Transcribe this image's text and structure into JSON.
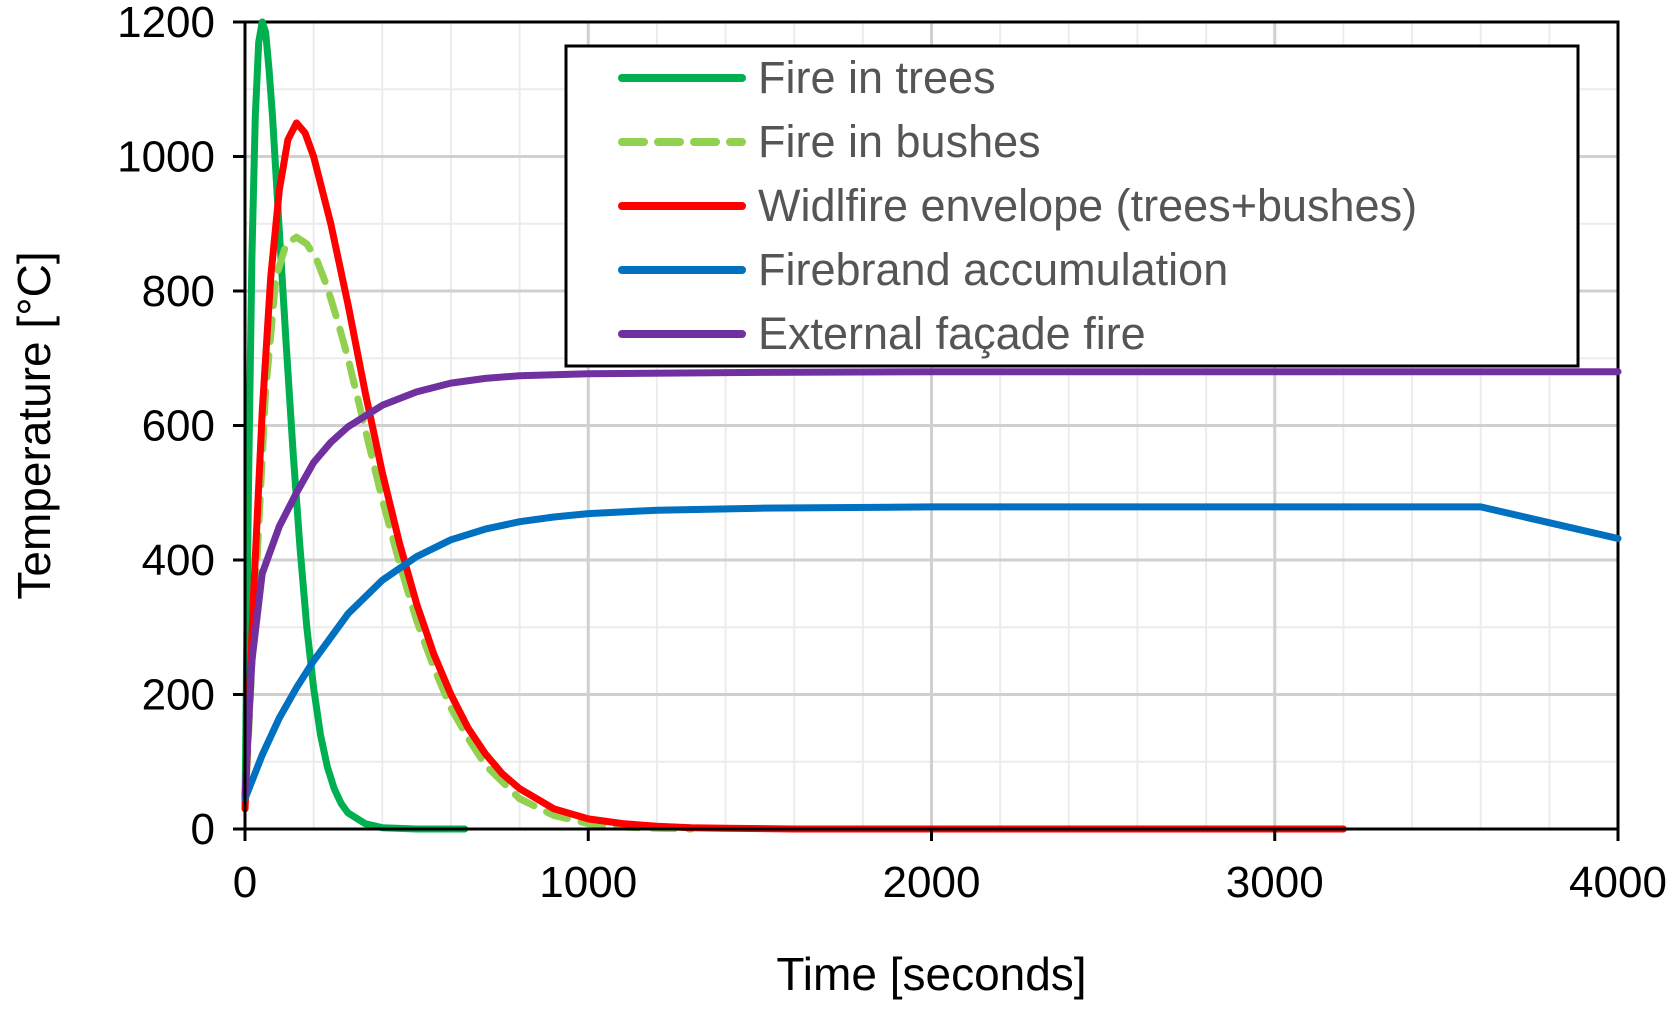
{
  "chart_data": {
    "type": "line",
    "title": "",
    "xlabel": "Time [seconds]",
    "ylabel": "Temperature [°C]",
    "xlim": [
      0,
      4000
    ],
    "ylim": [
      0,
      1200
    ],
    "xticks": [
      0,
      1000,
      2000,
      3000,
      4000
    ],
    "yticks": [
      0,
      200,
      400,
      600,
      800,
      1000,
      1200
    ],
    "x_tick_labels": [
      "0",
      "1000",
      "2000",
      "3000",
      "4000"
    ],
    "y_tick_labels": [
      "0",
      "200",
      "400",
      "600",
      "800",
      "1000",
      "1200"
    ],
    "grid": true,
    "legend_position": "top-right",
    "series": [
      {
        "name": "Fire in trees",
        "color": "#00b050",
        "dash": "solid",
        "x": [
          0,
          10,
          20,
          30,
          40,
          50,
          60,
          70,
          80,
          90,
          100,
          120,
          140,
          160,
          180,
          200,
          220,
          240,
          260,
          280,
          300,
          350,
          400,
          500,
          640
        ],
        "y": [
          30,
          500,
          850,
          1060,
          1170,
          1200,
          1185,
          1130,
          1060,
          975,
          890,
          720,
          560,
          420,
          300,
          210,
          140,
          92,
          60,
          38,
          24,
          8,
          2,
          0,
          0
        ]
      },
      {
        "name": "Fire in bushes",
        "color": "#92d050",
        "dash": "dashed",
        "x": [
          0,
          30,
          60,
          90,
          120,
          150,
          180,
          210,
          240,
          270,
          300,
          350,
          400,
          450,
          500,
          550,
          600,
          650,
          700,
          800,
          900,
          1000,
          1100,
          1200,
          1300
        ],
        "y": [
          30,
          350,
          650,
          820,
          870,
          880,
          870,
          845,
          805,
          755,
          700,
          595,
          490,
          395,
          310,
          240,
          180,
          135,
          95,
          45,
          20,
          8,
          3,
          1,
          0
        ]
      },
      {
        "name": "Widlfire envelope (trees+bushes)",
        "color": "#ff0000",
        "dash": "solid",
        "x": [
          0,
          25,
          50,
          75,
          100,
          125,
          150,
          175,
          200,
          250,
          300,
          350,
          400,
          450,
          500,
          550,
          600,
          650,
          700,
          750,
          800,
          900,
          1000,
          1100,
          1200,
          1300,
          1400,
          1600,
          2000,
          3000,
          3200
        ],
        "y": [
          30,
          350,
          620,
          820,
          950,
          1025,
          1050,
          1035,
          1000,
          900,
          780,
          650,
          530,
          425,
          335,
          260,
          200,
          150,
          112,
          82,
          60,
          30,
          15,
          8,
          4,
          2,
          1,
          0,
          0,
          0,
          0
        ]
      },
      {
        "name": "Firebrand accumulation",
        "color": "#0070c0",
        "dash": "solid",
        "x": [
          0,
          50,
          100,
          150,
          200,
          300,
          400,
          500,
          600,
          700,
          800,
          900,
          1000,
          1200,
          1500,
          2000,
          3000,
          3600,
          4000
        ],
        "y": [
          45,
          110,
          165,
          210,
          250,
          320,
          370,
          405,
          430,
          446,
          457,
          464,
          469,
          474,
          477,
          479,
          479,
          479,
          432
        ]
      },
      {
        "name": "External façade fire",
        "color": "#7030a0",
        "dash": "solid",
        "x": [
          0,
          20,
          50,
          100,
          150,
          200,
          250,
          300,
          400,
          500,
          600,
          700,
          800,
          1000,
          1500,
          2000,
          3000,
          4000
        ],
        "y": [
          50,
          250,
          380,
          450,
          500,
          545,
          575,
          598,
          630,
          650,
          663,
          670,
          674,
          677,
          679,
          680,
          680,
          680
        ]
      }
    ]
  }
}
